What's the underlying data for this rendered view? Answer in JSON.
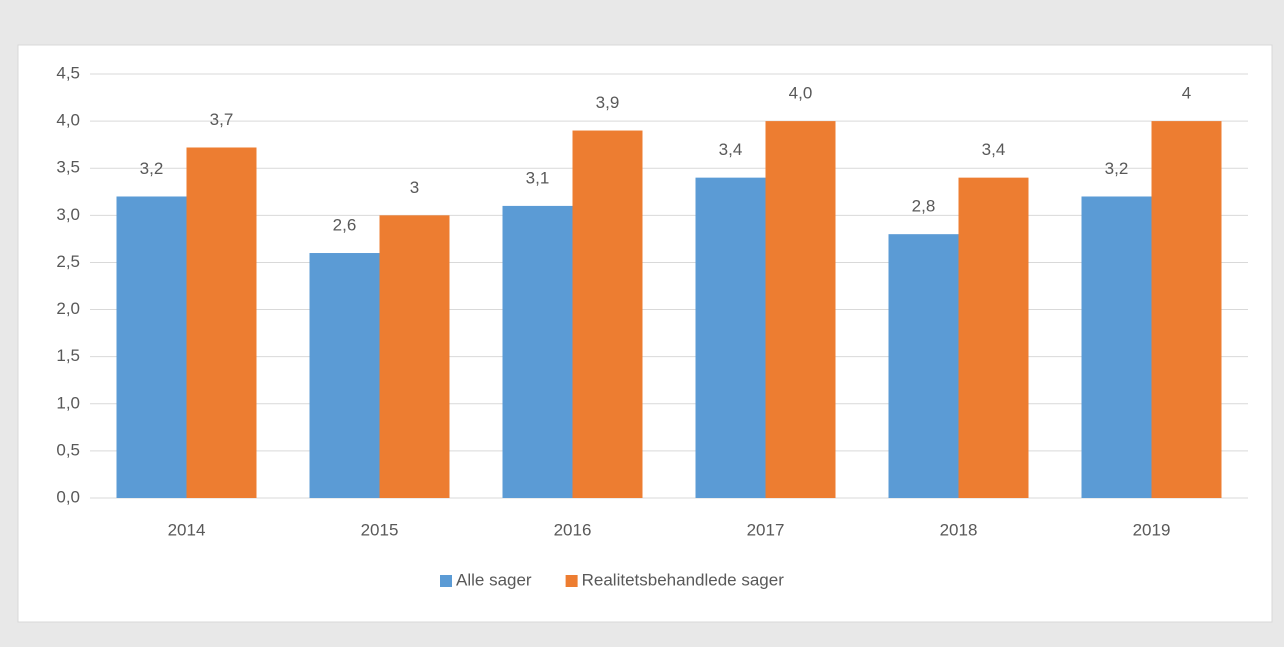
{
  "chart_data": {
    "type": "bar",
    "categories": [
      "2014",
      "2015",
      "2016",
      "2017",
      "2018",
      "2019"
    ],
    "series": [
      {
        "name": "Alle sager",
        "color": "#5b9bd5",
        "values": [
          3.2,
          2.6,
          3.1,
          3.4,
          2.8,
          3.2
        ],
        "value_labels": [
          "3,2",
          "2,6",
          "3,1",
          "3,4",
          "2,8",
          "3,2"
        ]
      },
      {
        "name": "Realitetsbehandlede sager",
        "color": "#ed7d31",
        "values": [
          3.72,
          3,
          3.9,
          4.0,
          3.4,
          4
        ],
        "value_labels": [
          "3,7",
          "3",
          "3,9",
          "4,0",
          "3,4",
          "4"
        ]
      }
    ],
    "ylim": [
      0,
      4.5
    ],
    "yticks": [
      {
        "value": 0,
        "label": "0,0"
      },
      {
        "value": 0.5,
        "label": "0,5"
      },
      {
        "value": 1,
        "label": "1,0"
      },
      {
        "value": 1.5,
        "label": "1,5"
      },
      {
        "value": 2,
        "label": "2,0"
      },
      {
        "value": 2.5,
        "label": "2,5"
      },
      {
        "value": 3,
        "label": "3,0"
      },
      {
        "value": 3.5,
        "label": "3,5"
      },
      {
        "value": 4,
        "label": "4,0"
      },
      {
        "value": 4.5,
        "label": "4,5"
      }
    ],
    "grid": true,
    "legend": "bottom"
  }
}
